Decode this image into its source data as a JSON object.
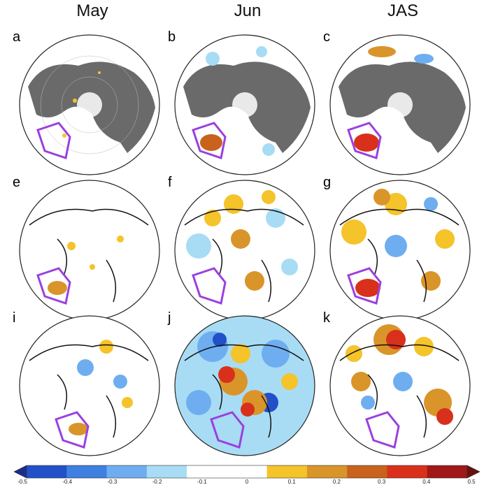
{
  "columns": [
    "May",
    "Jun",
    "JAS"
  ],
  "panels": [
    {
      "label": "a"
    },
    {
      "label": "b"
    },
    {
      "label": "c"
    },
    {
      "label": "e"
    },
    {
      "label": "f"
    },
    {
      "label": "g"
    },
    {
      "label": "i"
    },
    {
      "label": "j"
    },
    {
      "label": "k"
    }
  ],
  "colorbar": {
    "ticks": [
      "-0.5",
      "-0.4",
      "-0.3",
      "-0.2",
      "-0.1",
      "0",
      "0.1",
      "0.2",
      "0.3",
      "0.4",
      "0.5"
    ],
    "colors": [
      "#1b2c8c",
      "#2150c8",
      "#3f7fe0",
      "#6eaef0",
      "#a8dcf5",
      "#ffffff",
      "#ffffff",
      "#f5c32a",
      "#d9952a",
      "#c8621c",
      "#d9301c",
      "#a01818",
      "#6a0f0f"
    ]
  },
  "colors": {
    "land_mask": "#6a6a6a",
    "highlight_box": "#9b3fe0",
    "coast": "#111111"
  }
}
